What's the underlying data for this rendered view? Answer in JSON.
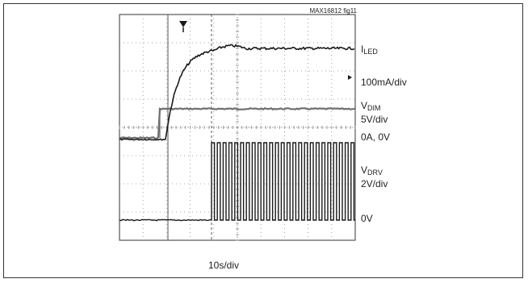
{
  "figure_id": "MAX16812 fig11",
  "x_scale": "10s/div",
  "labels": {
    "iled_main": "I",
    "iled_sub": "LED",
    "iled_scale": "100mA/div",
    "vdim_main": "V",
    "vdim_sub": "DIM",
    "vdim_scale": "5V/div",
    "zero_ref": "0A, 0V",
    "vdrv_main": "V",
    "vdrv_sub": "DRV",
    "vdrv_scale": "2V/div",
    "zero_drv": "0V"
  },
  "colors": {
    "trace_dark": "#1a1a1a",
    "trace_gray": "#6f6f6f",
    "grid": "#8a8a8a",
    "frame": "#333333"
  },
  "chart_data": {
    "type": "line",
    "grid": true,
    "divisions": {
      "x": 10,
      "y": 8
    },
    "trigger_marker": "T",
    "series": [
      {
        "name": "ILED",
        "scale": "100mA/div",
        "note": "rises from 0 after VDIM goes high, settles with ripple"
      },
      {
        "name": "VDIM",
        "scale": "5V/div",
        "note": "step from low to high"
      },
      {
        "name": "VDRV",
        "scale": "2V/div",
        "note": "switching square wave after startup delay"
      }
    ]
  }
}
